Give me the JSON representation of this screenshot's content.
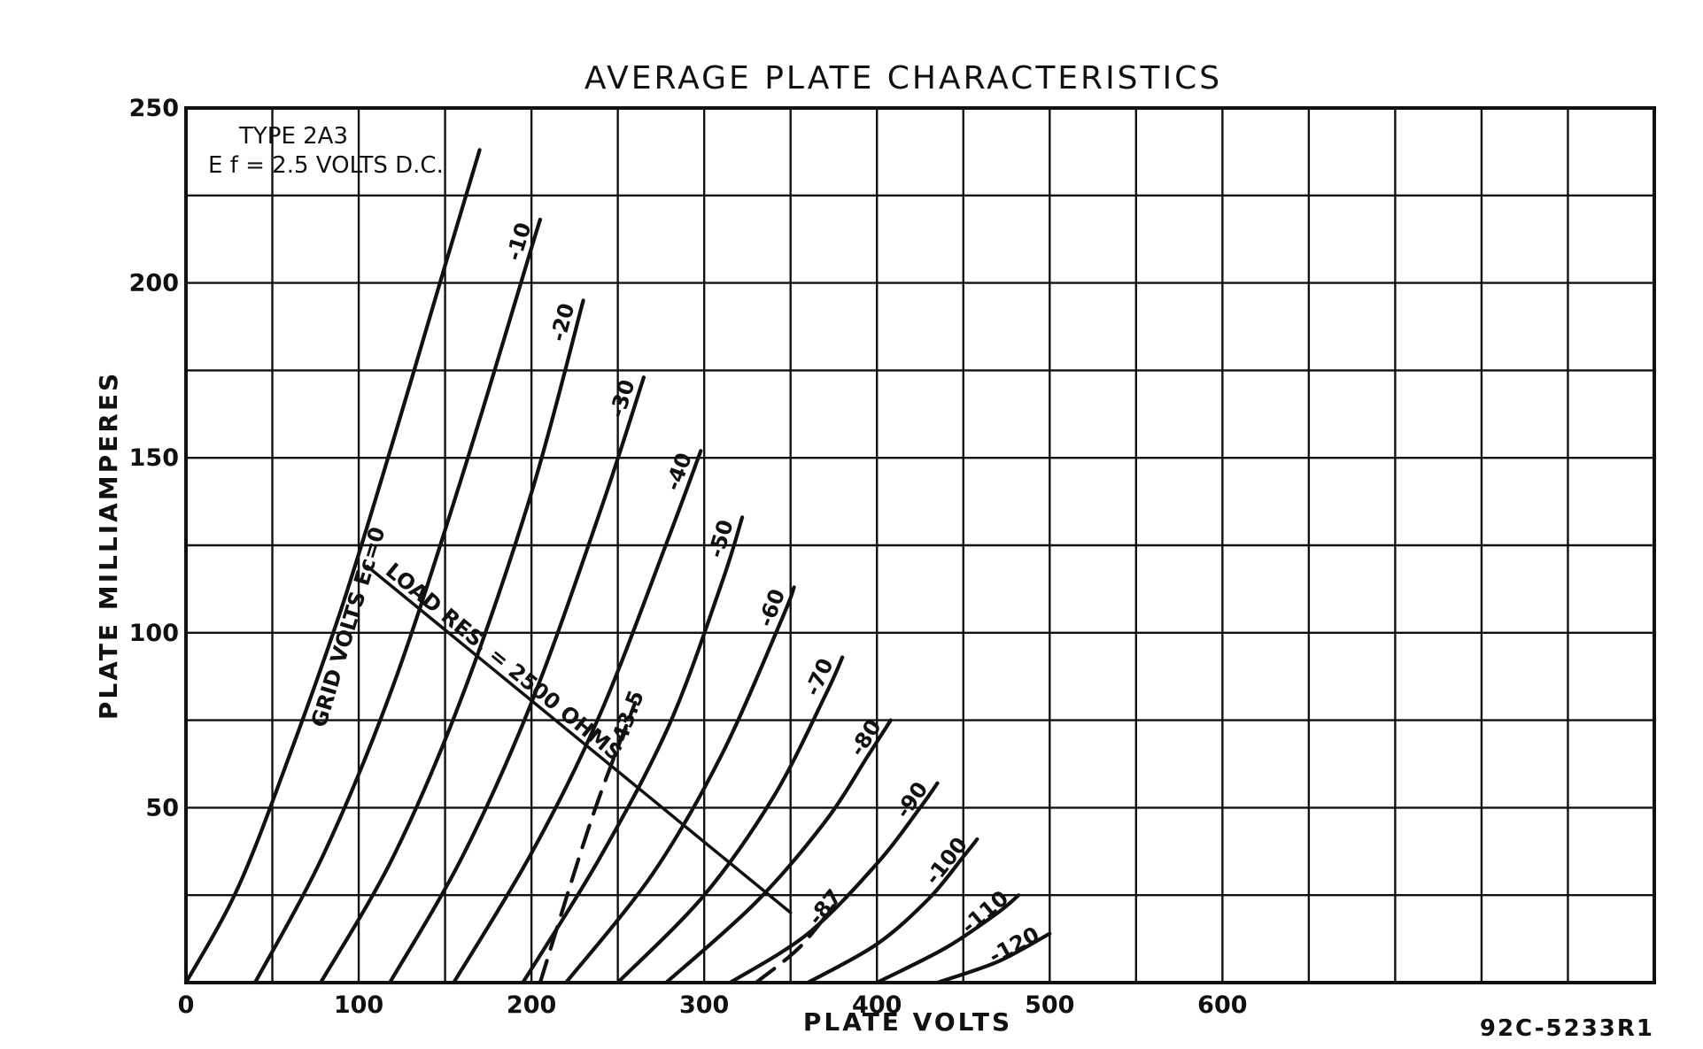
{
  "chart_data": {
    "type": "line",
    "title": "AVERAGE PLATE CHARACTERISTICS",
    "xlabel": "PLATE VOLTS",
    "ylabel": "PLATE MILLIAMPERES",
    "xlim": [
      0,
      850
    ],
    "ylim": [
      0,
      250
    ],
    "x_ticks": [
      "0",
      "100",
      "200",
      "300",
      "400",
      "500",
      "600"
    ],
    "y_ticks": [
      "50",
      "100",
      "150",
      "200",
      "250"
    ],
    "x_tick_values": [
      0,
      100,
      200,
      300,
      400,
      500,
      600
    ],
    "y_tick_values": [
      50,
      100,
      150,
      200,
      250
    ],
    "grid": true,
    "grid_x_step": 50,
    "grid_y_step": 25,
    "type_note": "TYPE 2A3",
    "filament_note": "E f = 2.5 VOLTS D.C.",
    "family_label": "GRID VOLTS Ec=0",
    "figure_id": "92C-5233R1",
    "series": [
      {
        "name": "0",
        "label": "",
        "x": [
          0,
          30,
          60,
          90,
          120,
          150,
          170
        ],
        "y": [
          0,
          27,
          65,
          107,
          155,
          205,
          238
        ]
      },
      {
        "name": "-10",
        "label": "-10",
        "x": [
          40,
          80,
          120,
          160,
          200,
          205
        ],
        "y": [
          0,
          37,
          85,
          145,
          210,
          218
        ]
      },
      {
        "name": "-20",
        "label": "-20",
        "x": [
          78,
          120,
          160,
          200,
          230
        ],
        "y": [
          0,
          36,
          82,
          140,
          195
        ]
      },
      {
        "name": "-30",
        "label": "-30",
        "x": [
          118,
          160,
          200,
          240,
          265
        ],
        "y": [
          0,
          36,
          80,
          135,
          173
        ]
      },
      {
        "name": "-40",
        "label": "-40",
        "x": [
          155,
          200,
          240,
          280,
          298
        ],
        "y": [
          0,
          37,
          77,
          128,
          152
        ]
      },
      {
        "name": "-50",
        "label": "-50",
        "x": [
          195,
          240,
          280,
          310,
          322
        ],
        "y": [
          0,
          36,
          74,
          114,
          133
        ]
      },
      {
        "name": "-60",
        "label": "-60",
        "x": [
          220,
          270,
          310,
          345,
          352
        ],
        "y": [
          0,
          31,
          65,
          104,
          113
        ]
      },
      {
        "name": "-70",
        "label": "-70",
        "x": [
          250,
          300,
          340,
          370,
          380
        ],
        "y": [
          0,
          25,
          53,
          82,
          93
        ]
      },
      {
        "name": "-80",
        "label": "-80",
        "x": [
          278,
          330,
          370,
          395,
          408
        ],
        "y": [
          0,
          23,
          46,
          65,
          75
        ]
      },
      {
        "name": "-90",
        "label": "-90",
        "x": [
          315,
          360,
          400,
          425,
          435
        ],
        "y": [
          0,
          14,
          34,
          50,
          57
        ]
      },
      {
        "name": "-100",
        "label": "-100",
        "x": [
          360,
          400,
          430,
          450,
          458
        ],
        "y": [
          0,
          11,
          24,
          36,
          41
        ]
      },
      {
        "name": "-110",
        "label": "-110",
        "x": [
          400,
          440,
          470,
          482
        ],
        "y": [
          0,
          10,
          20,
          25
        ]
      },
      {
        "name": "-120",
        "label": "-120",
        "x": [
          435,
          470,
          500
        ],
        "y": [
          0,
          6,
          14
        ]
      },
      {
        "name": "-43.5",
        "label": "-43.5",
        "x": [
          205,
          235,
          260
        ],
        "y": [
          0,
          47,
          80
        ]
      },
      {
        "name": "-87",
        "label": "-87",
        "x": [
          330,
          355,
          375
        ],
        "y": [
          0,
          10,
          22
        ]
      },
      {
        "name": "LOAD RES. = 2500 OHMS",
        "label": "LOAD RES. = 2500 OHMS",
        "x": [
          105,
          350
        ],
        "y": [
          119,
          20
        ]
      }
    ]
  }
}
